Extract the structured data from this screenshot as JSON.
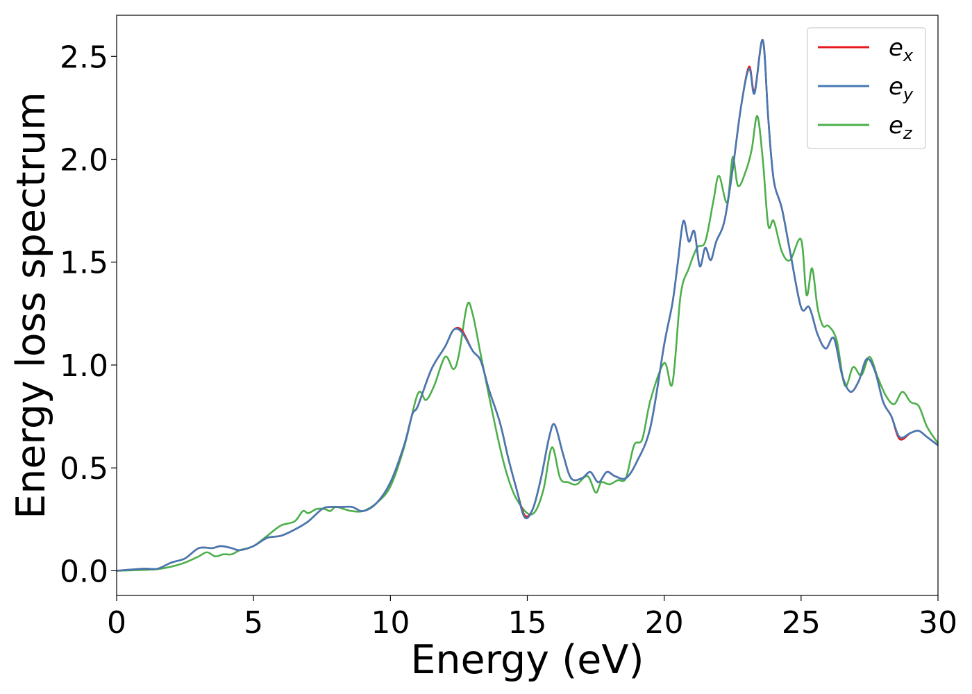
{
  "chart_data": {
    "type": "line",
    "xlabel": "Energy (eV)",
    "ylabel": "Energy loss spectrum",
    "xlim": [
      0,
      30
    ],
    "ylim": [
      -0.12,
      2.7
    ],
    "xticks": [
      0,
      5,
      10,
      15,
      20,
      25,
      30
    ],
    "xtick_labels": [
      "0",
      "5",
      "10",
      "15",
      "20",
      "25",
      "30"
    ],
    "yticks": [
      0.0,
      0.5,
      1.0,
      1.5,
      2.0,
      2.5
    ],
    "ytick_labels": [
      "0.0",
      "0.5",
      "1.0",
      "1.5",
      "2.0",
      "2.5"
    ],
    "grid": false,
    "legend_position": "top-right",
    "series": [
      {
        "name": "e_x",
        "label_base": "e",
        "label_sub": "x",
        "color": "#e41a1c",
        "x": [
          0,
          1,
          1.5,
          2,
          2.5,
          3,
          3.5,
          3.8,
          4.2,
          4.5,
          5,
          5.5,
          6,
          6.5,
          7,
          7.5,
          7.8,
          8.2,
          8.6,
          9,
          9.5,
          10,
          10.5,
          10.8,
          11,
          11.5,
          12,
          12.3,
          12.6,
          13,
          13.3,
          13.6,
          14,
          14.3,
          14.6,
          14.9,
          15.2,
          15.5,
          15.8,
          16,
          16.3,
          16.6,
          17,
          17.3,
          17.6,
          17.9,
          18.2,
          18.6,
          19,
          19.5,
          20,
          20.3,
          20.5,
          20.7,
          20.9,
          21.1,
          21.3,
          21.5,
          21.7,
          21.9,
          22.2,
          22.5,
          22.8,
          23.1,
          23.3,
          23.6,
          23.8,
          24,
          24.3,
          24.6,
          25,
          25.3,
          25.6,
          25.9,
          26.2,
          26.5,
          26.8,
          27.1,
          27.4,
          27.7,
          28,
          28.3,
          28.6,
          29,
          29.3,
          29.6,
          30
        ],
        "y": [
          0,
          0.01,
          0.01,
          0.04,
          0.06,
          0.11,
          0.11,
          0.12,
          0.11,
          0.1,
          0.12,
          0.16,
          0.17,
          0.2,
          0.24,
          0.3,
          0.31,
          0.31,
          0.31,
          0.29,
          0.33,
          0.43,
          0.61,
          0.76,
          0.8,
          0.98,
          1.09,
          1.17,
          1.17,
          1.07,
          1.02,
          0.88,
          0.72,
          0.55,
          0.4,
          0.27,
          0.3,
          0.45,
          0.65,
          0.71,
          0.57,
          0.45,
          0.45,
          0.48,
          0.43,
          0.48,
          0.46,
          0.45,
          0.53,
          0.7,
          1.1,
          1.3,
          1.5,
          1.7,
          1.6,
          1.65,
          1.48,
          1.57,
          1.51,
          1.6,
          1.7,
          1.95,
          2.25,
          2.45,
          2.33,
          2.58,
          2.2,
          1.9,
          1.76,
          1.55,
          1.28,
          1.28,
          1.15,
          1.08,
          1.13,
          0.95,
          0.87,
          0.92,
          1.03,
          0.97,
          0.82,
          0.75,
          0.64,
          0.67,
          0.68,
          0.65,
          0.61
        ]
      },
      {
        "name": "e_y",
        "label_base": "e",
        "label_sub": "y",
        "color": "#4479b4",
        "x": [
          0,
          1,
          1.5,
          2,
          2.5,
          3,
          3.5,
          3.8,
          4.2,
          4.5,
          5,
          5.5,
          6,
          6.5,
          7,
          7.5,
          7.8,
          8.2,
          8.6,
          9,
          9.5,
          10,
          10.5,
          10.8,
          11,
          11.5,
          12,
          12.3,
          12.6,
          13,
          13.3,
          13.6,
          14,
          14.3,
          14.6,
          14.9,
          15.2,
          15.5,
          15.8,
          16,
          16.3,
          16.6,
          17,
          17.3,
          17.6,
          17.9,
          18.2,
          18.6,
          19,
          19.5,
          20,
          20.3,
          20.5,
          20.7,
          20.9,
          21.1,
          21.3,
          21.5,
          21.7,
          21.9,
          22.2,
          22.5,
          22.8,
          23.1,
          23.3,
          23.6,
          23.8,
          24,
          24.3,
          24.6,
          25,
          25.3,
          25.6,
          25.9,
          26.2,
          26.5,
          26.8,
          27.1,
          27.4,
          27.7,
          28,
          28.3,
          28.6,
          29,
          29.3,
          29.6,
          30
        ],
        "y": [
          0,
          0.01,
          0.01,
          0.04,
          0.06,
          0.11,
          0.11,
          0.12,
          0.11,
          0.1,
          0.12,
          0.16,
          0.17,
          0.2,
          0.24,
          0.3,
          0.31,
          0.31,
          0.31,
          0.29,
          0.33,
          0.43,
          0.61,
          0.76,
          0.8,
          0.98,
          1.09,
          1.17,
          1.16,
          1.07,
          1.02,
          0.88,
          0.72,
          0.55,
          0.4,
          0.26,
          0.3,
          0.45,
          0.65,
          0.71,
          0.57,
          0.45,
          0.45,
          0.48,
          0.43,
          0.48,
          0.46,
          0.45,
          0.53,
          0.7,
          1.1,
          1.3,
          1.5,
          1.7,
          1.6,
          1.65,
          1.48,
          1.57,
          1.51,
          1.6,
          1.7,
          1.95,
          2.25,
          2.44,
          2.32,
          2.58,
          2.2,
          1.9,
          1.76,
          1.55,
          1.28,
          1.28,
          1.15,
          1.08,
          1.13,
          0.95,
          0.87,
          0.92,
          1.03,
          0.97,
          0.82,
          0.75,
          0.65,
          0.67,
          0.68,
          0.65,
          0.61
        ]
      },
      {
        "name": "e_z",
        "label_base": "e",
        "label_sub": "z",
        "color": "#4daf4a",
        "x": [
          0,
          1,
          1.5,
          2,
          2.5,
          3,
          3.3,
          3.6,
          3.9,
          4.2,
          4.5,
          5,
          5.5,
          6,
          6.5,
          6.8,
          7,
          7.3,
          7.6,
          7.8,
          8,
          8.3,
          8.6,
          9,
          9.5,
          10,
          10.5,
          11,
          11.3,
          11.6,
          12,
          12.3,
          12.5,
          12.8,
          13,
          13.3,
          13.6,
          14,
          14.3,
          14.6,
          15,
          15.3,
          15.6,
          15.9,
          16.2,
          16.5,
          16.8,
          17.2,
          17.5,
          17.7,
          18,
          18.3,
          18.6,
          18.9,
          19.2,
          19.5,
          20,
          20.3,
          20.6,
          20.9,
          21.2,
          21.5,
          21.8,
          22,
          22.3,
          22.5,
          22.7,
          23,
          23.2,
          23.4,
          23.6,
          23.8,
          24,
          24.3,
          24.6,
          25,
          25.2,
          25.4,
          25.6,
          25.8,
          26,
          26.3,
          26.6,
          26.9,
          27.2,
          27.5,
          27.8,
          28.1,
          28.4,
          28.7,
          29,
          29.3,
          29.6,
          30
        ],
        "y": [
          0,
          0.004,
          0.008,
          0.02,
          0.04,
          0.07,
          0.09,
          0.07,
          0.08,
          0.08,
          0.1,
          0.12,
          0.17,
          0.22,
          0.24,
          0.29,
          0.28,
          0.3,
          0.3,
          0.29,
          0.31,
          0.3,
          0.29,
          0.29,
          0.33,
          0.41,
          0.6,
          0.86,
          0.83,
          0.9,
          1.04,
          0.98,
          1.05,
          1.29,
          1.25,
          1.05,
          0.85,
          0.6,
          0.45,
          0.35,
          0.28,
          0.29,
          0.4,
          0.6,
          0.45,
          0.43,
          0.42,
          0.46,
          0.38,
          0.43,
          0.42,
          0.44,
          0.45,
          0.61,
          0.64,
          0.83,
          1.01,
          0.91,
          1.34,
          1.47,
          1.57,
          1.6,
          1.8,
          1.92,
          1.79,
          2.01,
          1.87,
          1.95,
          2.05,
          2.21,
          2.0,
          1.68,
          1.7,
          1.55,
          1.51,
          1.61,
          1.34,
          1.47,
          1.28,
          1.19,
          1.19,
          1.12,
          0.9,
          0.99,
          0.95,
          1.04,
          0.94,
          0.85,
          0.81,
          0.87,
          0.82,
          0.8,
          0.7,
          0.62
        ]
      }
    ]
  }
}
